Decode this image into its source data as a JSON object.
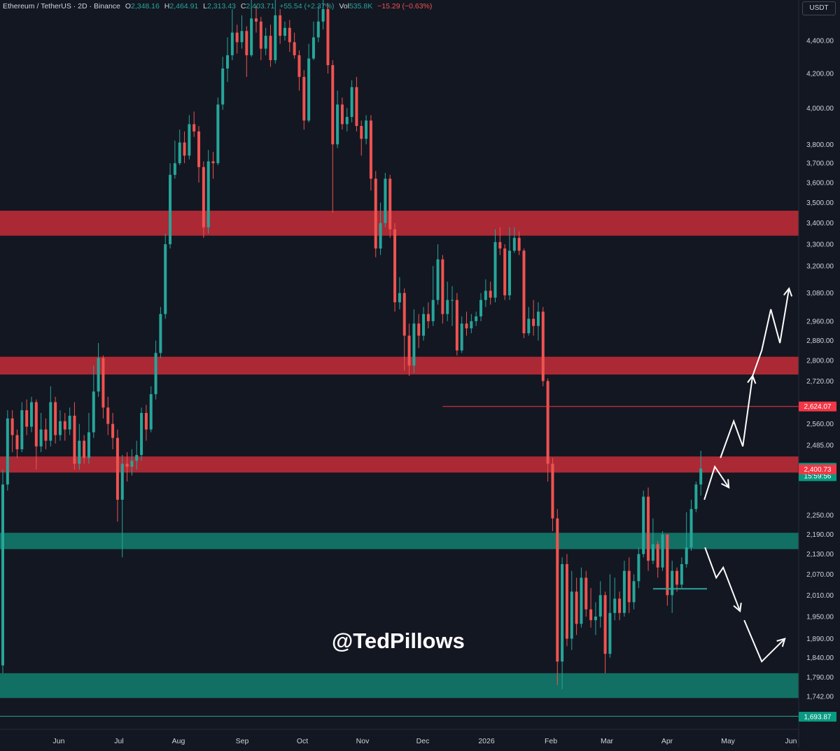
{
  "header": {
    "symbol": "Ethereum / TetherUS · 2D · Binance",
    "open_label": "O",
    "open": "2,348.16",
    "high_label": "H",
    "high": "2,464.91",
    "low_label": "L",
    "low": "2,313.43",
    "close_label": "C",
    "close": "2,403.71",
    "change": "+55.54 (+2.37%)",
    "vol_label": "Vol",
    "vol": "535.8K",
    "vol_change": "−15.29 (−0.63%)"
  },
  "currency_button": "USDT",
  "watermark": "@TedPillows",
  "colors": {
    "background": "#131722",
    "up": "#26a69a",
    "down": "#ef5350",
    "resistance_zone": "#b22a36",
    "support_zone": "#117567",
    "axis_text": "#d1d4dc"
  },
  "chart_data": {
    "type": "candlestick",
    "title": "Ethereum / TetherUS · 2D · Binance",
    "scale": "log",
    "ylim": [
      1690,
      4480
    ],
    "x_ticks": [
      "Jun",
      "Jul",
      "Aug",
      "Sep",
      "Oct",
      "Nov",
      "Dec",
      "2026",
      "Feb",
      "Mar",
      "Apr",
      "May",
      "Jun"
    ],
    "y_ticks": [
      {
        "value": 4400,
        "label": "4,400.00"
      },
      {
        "value": 4200,
        "label": "4,200.00"
      },
      {
        "value": 4000,
        "label": "4,000.00"
      },
      {
        "value": 3800,
        "label": "3,800.00"
      },
      {
        "value": 3700,
        "label": "3,700.00"
      },
      {
        "value": 3600,
        "label": "3,600.00"
      },
      {
        "value": 3500,
        "label": "3,500.00"
      },
      {
        "value": 3400,
        "label": "3,400.00"
      },
      {
        "value": 3300,
        "label": "3,300.00"
      },
      {
        "value": 3200,
        "label": "3,200.00"
      },
      {
        "value": 3080,
        "label": "3,080.00"
      },
      {
        "value": 2960,
        "label": "2,960.00"
      },
      {
        "value": 2880,
        "label": "2,880.00"
      },
      {
        "value": 2800,
        "label": "2,800.00"
      },
      {
        "value": 2720,
        "label": "2,720.00"
      },
      {
        "value": 2560,
        "label": "2,560.00"
      },
      {
        "value": 2485,
        "label": "2,485.00"
      },
      {
        "value": 2250,
        "label": "2,250.00"
      },
      {
        "value": 2190,
        "label": "2,190.00"
      },
      {
        "value": 2130,
        "label": "2,130.00"
      },
      {
        "value": 2070,
        "label": "2,070.00"
      },
      {
        "value": 2010,
        "label": "2,010.00"
      },
      {
        "value": 1950,
        "label": "1,950.00"
      },
      {
        "value": 1890,
        "label": "1,890.00"
      },
      {
        "value": 1840,
        "label": "1,840.00"
      },
      {
        "value": 1790,
        "label": "1,790.00"
      },
      {
        "value": 1742,
        "label": "1,742.00"
      }
    ],
    "price_labels": [
      {
        "value": 2624.07,
        "label": "2,624.07",
        "color": "#f23645"
      },
      {
        "value": 2403.71,
        "label": "2,403.71",
        "sub": "15:59:56",
        "color": "#089981"
      },
      {
        "value": 2400.73,
        "label": "2,400.73",
        "color": "#f23645"
      },
      {
        "value": 1693.87,
        "label": "1,693.87",
        "color": "#089981"
      }
    ],
    "zones": [
      {
        "kind": "resistance",
        "low": 3340,
        "high": 3460
      },
      {
        "kind": "resistance",
        "low": 2745,
        "high": 2815
      },
      {
        "kind": "resistance",
        "low": 2390,
        "high": 2445
      },
      {
        "kind": "support",
        "low": 2145,
        "high": 2195
      },
      {
        "kind": "support",
        "low": 1738,
        "high": 1800
      }
    ],
    "horizontal_lines": [
      {
        "value": 2624.07,
        "color": "#f23645",
        "from_index": 0.63
      },
      {
        "value": 2028,
        "color": "#26a69a",
        "from_index": 0.93
      },
      {
        "value": 1693.87,
        "color": "#26a69a"
      }
    ],
    "candles": [
      [
        1820,
        2350,
        2400,
        1800
      ],
      [
        2350,
        2580,
        2610,
        2330
      ],
      [
        2580,
        2520,
        2610,
        2460
      ],
      [
        2520,
        2470,
        2540,
        2440
      ],
      [
        2470,
        2610,
        2640,
        2460
      ],
      [
        2610,
        2550,
        2650,
        2520
      ],
      [
        2550,
        2640,
        2660,
        2530
      ],
      [
        2640,
        2480,
        2650,
        2400
      ],
      [
        2480,
        2540,
        2600,
        2460
      ],
      [
        2540,
        2500,
        2580,
        2470
      ],
      [
        2500,
        2640,
        2700,
        2480
      ],
      [
        2640,
        2520,
        2660,
        2490
      ],
      [
        2520,
        2570,
        2610,
        2500
      ],
      [
        2570,
        2540,
        2600,
        2500
      ],
      [
        2540,
        2590,
        2620,
        2520
      ],
      [
        2590,
        2420,
        2640,
        2400
      ],
      [
        2420,
        2500,
        2560,
        2400
      ],
      [
        2500,
        2440,
        2520,
        2420
      ],
      [
        2440,
        2530,
        2600,
        2420
      ],
      [
        2530,
        2680,
        2780,
        2510
      ],
      [
        2680,
        2810,
        2870,
        2660
      ],
      [
        2810,
        2620,
        2820,
        2580
      ],
      [
        2620,
        2560,
        2660,
        2520
      ],
      [
        2560,
        2510,
        2600,
        2470
      ],
      [
        2510,
        2300,
        2540,
        2230
      ],
      [
        2300,
        2420,
        2450,
        2120
      ],
      [
        2420,
        2410,
        2460,
        2360
      ],
      [
        2410,
        2430,
        2470,
        2380
      ],
      [
        2430,
        2450,
        2500,
        2400
      ],
      [
        2450,
        2600,
        2620,
        2430
      ],
      [
        2600,
        2540,
        2630,
        2500
      ],
      [
        2540,
        2670,
        2700,
        2530
      ],
      [
        2670,
        2830,
        2880,
        2650
      ],
      [
        2830,
        2990,
        3020,
        2810
      ],
      [
        2990,
        3300,
        3350,
        2970
      ],
      [
        3300,
        3640,
        3700,
        3280
      ],
      [
        3640,
        3700,
        3820,
        3620
      ],
      [
        3700,
        3810,
        3880,
        3690
      ],
      [
        3810,
        3740,
        3870,
        3700
      ],
      [
        3740,
        3910,
        3960,
        3720
      ],
      [
        3910,
        3870,
        3980,
        3840
      ],
      [
        3870,
        3680,
        3900,
        3600
      ],
      [
        3680,
        3380,
        3710,
        3330
      ],
      [
        3380,
        3710,
        3770,
        3350
      ],
      [
        3710,
        3700,
        3760,
        3620
      ],
      [
        3700,
        4020,
        4060,
        3690
      ],
      [
        4020,
        4230,
        4300,
        3990
      ],
      [
        4230,
        4310,
        4420,
        4150
      ],
      [
        4310,
        4450,
        4600,
        4280
      ],
      [
        4450,
        4390,
        4500,
        4320
      ],
      [
        4390,
        4460,
        4560,
        4350
      ],
      [
        4460,
        4310,
        4490,
        4180
      ],
      [
        4310,
        4540,
        4680,
        4300
      ],
      [
        4540,
        4520,
        4620,
        4450
      ],
      [
        4520,
        4350,
        4550,
        4280
      ],
      [
        4350,
        4430,
        4480,
        4310
      ],
      [
        4430,
        4280,
        4500,
        4240
      ],
      [
        4280,
        4560,
        4700,
        4260
      ],
      [
        4560,
        4430,
        4600,
        4380
      ],
      [
        4430,
        4480,
        4520,
        4400
      ],
      [
        4480,
        4390,
        4530,
        4330
      ],
      [
        4390,
        4310,
        4450,
        4290
      ],
      [
        4310,
        4180,
        4340,
        4100
      ],
      [
        4180,
        3930,
        4220,
        3880
      ],
      [
        3930,
        4290,
        4380,
        3920
      ],
      [
        4290,
        4420,
        4520,
        4280
      ],
      [
        4420,
        4520,
        4620,
        4390
      ],
      [
        4520,
        4600,
        4720,
        4470
      ],
      [
        4600,
        4250,
        4640,
        4200
      ],
      [
        4250,
        3800,
        4280,
        3450
      ],
      [
        3800,
        4020,
        4100,
        3780
      ],
      [
        4020,
        3910,
        4060,
        3880
      ],
      [
        3910,
        3950,
        4000,
        3870
      ],
      [
        3950,
        4120,
        4160,
        3920
      ],
      [
        4120,
        3900,
        4180,
        3870
      ],
      [
        3900,
        3830,
        3930,
        3740
      ],
      [
        3830,
        3930,
        3960,
        3800
      ],
      [
        3930,
        3620,
        3960,
        3560
      ],
      [
        3620,
        3280,
        3660,
        3240
      ],
      [
        3280,
        3400,
        3500,
        3250
      ],
      [
        3400,
        3620,
        3650,
        3380
      ],
      [
        3620,
        3370,
        3640,
        3330
      ],
      [
        3370,
        3040,
        3400,
        3000
      ],
      [
        3040,
        3080,
        3150,
        3010
      ],
      [
        3080,
        2900,
        3100,
        2760
      ],
      [
        2900,
        2780,
        2950,
        2740
      ],
      [
        2780,
        2950,
        3010,
        2750
      ],
      [
        2950,
        2900,
        2990,
        2850
      ],
      [
        2900,
        2990,
        3020,
        2880
      ],
      [
        2990,
        2960,
        3040,
        2930
      ],
      [
        2960,
        3050,
        3200,
        2940
      ],
      [
        3050,
        3230,
        3300,
        3030
      ],
      [
        3230,
        2990,
        3250,
        2950
      ],
      [
        2990,
        3050,
        3130,
        2960
      ],
      [
        3050,
        3050,
        3110,
        2940
      ],
      [
        3050,
        2840,
        3080,
        2820
      ],
      [
        2840,
        2950,
        2980,
        2830
      ],
      [
        2950,
        2930,
        3000,
        2900
      ],
      [
        2930,
        2960,
        2990,
        2910
      ],
      [
        2960,
        2980,
        3000,
        2940
      ],
      [
        2980,
        3050,
        3080,
        2960
      ],
      [
        3050,
        3090,
        3140,
        3020
      ],
      [
        3090,
        3060,
        3130,
        3030
      ],
      [
        3060,
        3310,
        3370,
        3040
      ],
      [
        3310,
        3280,
        3380,
        3250
      ],
      [
        3280,
        3070,
        3300,
        3050
      ],
      [
        3070,
        3270,
        3380,
        3050
      ],
      [
        3270,
        3330,
        3380,
        3260
      ],
      [
        3330,
        3270,
        3360,
        3250
      ],
      [
        3270,
        2910,
        3280,
        2890
      ],
      [
        2910,
        2970,
        3020,
        2900
      ],
      [
        2970,
        2940,
        3050,
        2900
      ],
      [
        2940,
        3000,
        3040,
        2880
      ],
      [
        3000,
        2720,
        3020,
        2700
      ],
      [
        2720,
        2420,
        2730,
        2360
      ],
      [
        2420,
        2240,
        2440,
        2200
      ],
      [
        2240,
        1830,
        2270,
        1770
      ],
      [
        1830,
        2100,
        2120,
        1760
      ],
      [
        2100,
        1890,
        2130,
        1870
      ],
      [
        1890,
        2020,
        2080,
        1860
      ],
      [
        2020,
        1930,
        2060,
        1900
      ],
      [
        1930,
        2060,
        2090,
        1920
      ],
      [
        2060,
        1970,
        2080,
        1950
      ],
      [
        1970,
        1940,
        2030,
        1920
      ],
      [
        1940,
        1950,
        1990,
        1900
      ],
      [
        1950,
        2010,
        2050,
        1920
      ],
      [
        2010,
        1850,
        2020,
        1800
      ],
      [
        1850,
        1960,
        2070,
        1840
      ],
      [
        1960,
        2000,
        2060,
        1940
      ],
      [
        2000,
        1960,
        2020,
        1940
      ],
      [
        1960,
        2080,
        2110,
        1950
      ],
      [
        2080,
        1990,
        2120,
        1960
      ],
      [
        1990,
        2050,
        2070,
        1970
      ],
      [
        2050,
        2130,
        2150,
        2030
      ],
      [
        2130,
        2310,
        2330,
        2120
      ],
      [
        2310,
        2110,
        2340,
        2080
      ],
      [
        2110,
        2160,
        2240,
        2100
      ],
      [
        2160,
        2090,
        2170,
        2060
      ],
      [
        2090,
        2190,
        2200,
        2080
      ],
      [
        2190,
        2010,
        2190,
        1980
      ],
      [
        2010,
        2080,
        2110,
        1960
      ],
      [
        2080,
        2040,
        2090,
        2020
      ],
      [
        2040,
        2100,
        2120,
        2030
      ],
      [
        2100,
        2150,
        2260,
        2090
      ],
      [
        2150,
        2270,
        2300,
        2140
      ],
      [
        2270,
        2350,
        2360,
        2260
      ],
      [
        2350,
        2403.71,
        2464.91,
        2313.43
      ]
    ],
    "projections": [
      {
        "direction": "bullish"
      },
      {
        "direction": "bearish"
      }
    ]
  }
}
